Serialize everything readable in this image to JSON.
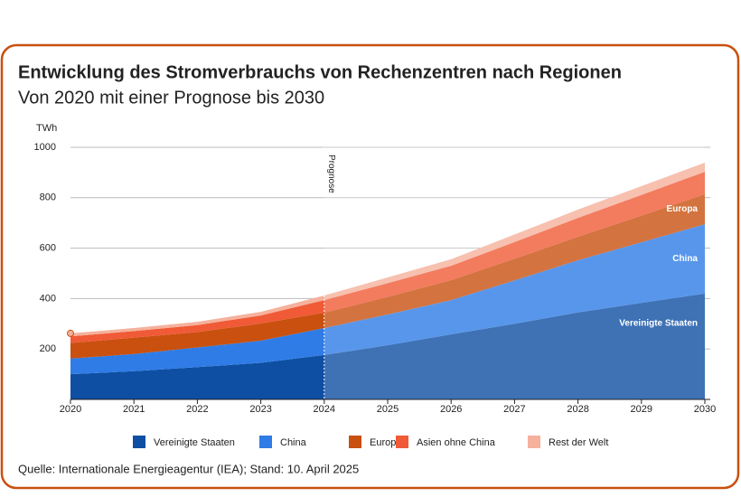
{
  "chart_data": {
    "type": "stacked-area",
    "title": "Entwicklung des Stromverbrauchs von Rechenzentren nach Regionen",
    "subtitle": "Von 2020 mit einer Prognose bis 2030",
    "y_unit": "TWh",
    "annotation": "Prognose",
    "forecast_from": 2024,
    "source": "Quelle: Internationale Energieagentur (IEA); Stand: 10. April 2025",
    "x": [
      2020,
      2021,
      2022,
      2023,
      2024,
      2025,
      2026,
      2027,
      2028,
      2029,
      2030
    ],
    "xlim": [
      2020,
      2030
    ],
    "ylim": [
      0,
      1000
    ],
    "yticks": [
      200,
      400,
      600,
      800,
      1000
    ],
    "grid": true,
    "series": [
      {
        "name": "Vereinigte Staaten",
        "color": "#0e4fa3",
        "values": [
          100,
          112,
          128,
          145,
          176,
          215,
          258,
          300,
          345,
          383,
          420
        ]
      },
      {
        "name": "China",
        "color": "#2f7ce6",
        "values": [
          62,
          68,
          78,
          88,
          107,
          122,
          136,
          172,
          207,
          240,
          275
        ]
      },
      {
        "name": "Europa",
        "color": "#c9500f",
        "values": [
          62,
          65,
          61,
          68,
          61,
          70,
          79,
          86,
          93,
          106,
          119
        ]
      },
      {
        "name": "Asien ohne China",
        "color": "#f05a36",
        "values": [
          26,
          26,
          28,
          32,
          50,
          54,
          57,
          66,
          75,
          82,
          89
        ]
      },
      {
        "name": "Rest der Welt",
        "color": "#f5b19c",
        "values": [
          12,
          12,
          13,
          14,
          18,
          23,
          26,
          30,
          33,
          35,
          36
        ]
      }
    ]
  }
}
